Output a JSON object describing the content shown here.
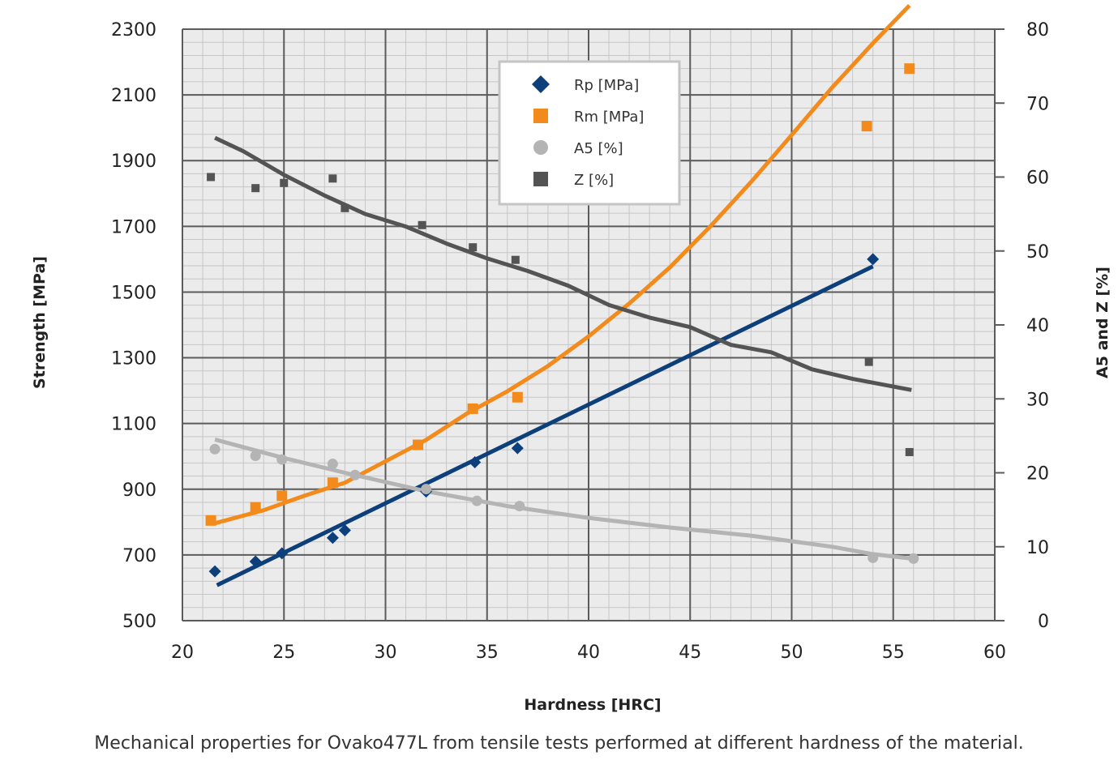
{
  "caption": "Mechanical properties for Ovako477L from tensile tests performed at different hardness of the material.",
  "chart_data": {
    "type": "scatter",
    "xlabel": "Hardness [HRC]",
    "ylabel": "Strength [MPa]",
    "y2label": "A5 and Z [%]",
    "xlim": [
      20,
      60
    ],
    "ylim": [
      500,
      2300
    ],
    "y2lim": [
      0,
      80
    ],
    "xticks": [
      "20",
      "25",
      "30",
      "35",
      "40",
      "45",
      "50",
      "55",
      "60"
    ],
    "yticks": [
      "500",
      "700",
      "900",
      "1100",
      "1300",
      "1500",
      "1700",
      "1900",
      "2100",
      "2300"
    ],
    "y2ticks": [
      "0",
      "10",
      "20",
      "30",
      "40",
      "50",
      "60",
      "70",
      "80"
    ],
    "grid": true,
    "legend_position": "top-center",
    "series": [
      {
        "name": "Rp [MPa]",
        "axis": "left",
        "marker": "diamond",
        "color": "#0d3f7a",
        "points": [
          [
            21.6,
            650
          ],
          [
            23.6,
            680
          ],
          [
            24.9,
            705
          ],
          [
            27.4,
            752
          ],
          [
            28.0,
            775
          ],
          [
            32.0,
            893
          ],
          [
            34.4,
            982
          ],
          [
            36.5,
            1025
          ],
          [
            54.0,
            1600
          ]
        ],
        "trend": [
          [
            21.7,
            608
          ],
          [
            54.0,
            1578
          ]
        ]
      },
      {
        "name": "Rm [MPa]",
        "axis": "left",
        "marker": "square",
        "color": "#f28a1c",
        "points": [
          [
            21.4,
            805
          ],
          [
            23.6,
            845
          ],
          [
            24.9,
            880
          ],
          [
            27.4,
            920
          ],
          [
            31.6,
            1035
          ],
          [
            34.3,
            1145
          ],
          [
            36.5,
            1180
          ],
          [
            53.7,
            2005
          ],
          [
            55.8,
            2180
          ]
        ],
        "trend": [
          [
            21.5,
            795
          ],
          [
            24,
            836
          ],
          [
            26,
            880
          ],
          [
            28,
            920
          ],
          [
            30,
            985
          ],
          [
            32,
            1050
          ],
          [
            34,
            1130
          ],
          [
            36,
            1198
          ],
          [
            38,
            1275
          ],
          [
            40,
            1365
          ],
          [
            42,
            1465
          ],
          [
            44,
            1575
          ],
          [
            46,
            1700
          ],
          [
            48,
            1835
          ],
          [
            50,
            1978
          ],
          [
            52,
            2123
          ],
          [
            54,
            2257
          ],
          [
            55.8,
            2372
          ]
        ]
      },
      {
        "name": "A5 [%]",
        "axis": "right",
        "marker": "circle",
        "color": "#b4b4b4",
        "points": [
          [
            21.6,
            23.2
          ],
          [
            23.6,
            22.3
          ],
          [
            24.9,
            21.8
          ],
          [
            27.4,
            21.2
          ],
          [
            28.5,
            19.7
          ],
          [
            32.0,
            17.8
          ],
          [
            34.5,
            16.2
          ],
          [
            36.6,
            15.5
          ],
          [
            54.0,
            8.5
          ],
          [
            56.0,
            8.4
          ]
        ],
        "trend": [
          [
            21.6,
            24.5
          ],
          [
            25,
            22
          ],
          [
            28,
            20
          ],
          [
            32,
            17.5
          ],
          [
            36,
            15.5
          ],
          [
            40,
            13.9
          ],
          [
            44,
            12.6
          ],
          [
            48,
            11.5
          ],
          [
            52,
            10
          ],
          [
            54,
            9
          ],
          [
            55.9,
            8.4
          ]
        ]
      },
      {
        "name": "Z [%]",
        "axis": "right",
        "marker": "square-small",
        "color": "#545454",
        "points": [
          [
            21.4,
            60
          ],
          [
            23.6,
            58.5
          ],
          [
            25.0,
            59.2
          ],
          [
            27.4,
            59.8
          ],
          [
            28.0,
            55.8
          ],
          [
            31.8,
            53.5
          ],
          [
            34.3,
            50.5
          ],
          [
            36.4,
            48.8
          ],
          [
            53.8,
            35
          ],
          [
            55.8,
            22.8
          ]
        ],
        "trend": [
          [
            21.6,
            65.3
          ],
          [
            23,
            63.5
          ],
          [
            25,
            60.3
          ],
          [
            27,
            57.5
          ],
          [
            29,
            55
          ],
          [
            31,
            53.3
          ],
          [
            33,
            51
          ],
          [
            35,
            49
          ],
          [
            37,
            47.3
          ],
          [
            39,
            45.3
          ],
          [
            41,
            42.7
          ],
          [
            43,
            41
          ],
          [
            45,
            39.7
          ],
          [
            47,
            37.3
          ],
          [
            49,
            36.3
          ],
          [
            51,
            34
          ],
          [
            53,
            32.7
          ],
          [
            55.9,
            31.2
          ]
        ]
      }
    ]
  }
}
